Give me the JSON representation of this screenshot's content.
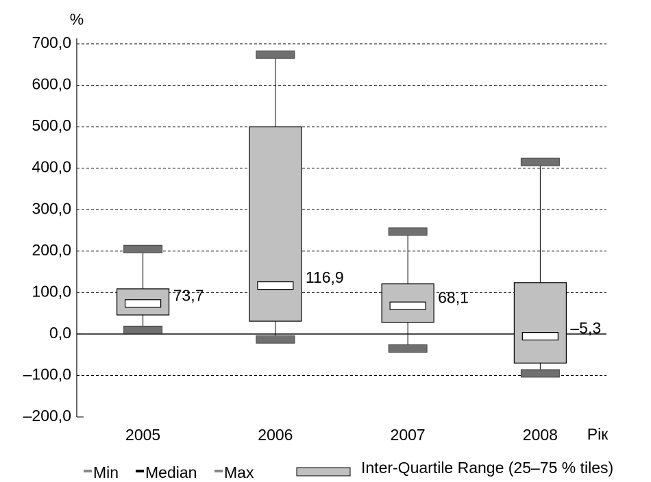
{
  "chart_data": {
    "type": "box",
    "y_label": "%",
    "x_label": "Рік",
    "categories": [
      "2005",
      "2006",
      "2007",
      "2008"
    ],
    "ylim": [
      -200,
      700
    ],
    "yticks": [
      {
        "value": -200,
        "label": "–200,0"
      },
      {
        "value": -100,
        "label": "–100,0"
      },
      {
        "value": 0,
        "label": "0,0"
      },
      {
        "value": 100,
        "label": "100,0"
      },
      {
        "value": 200,
        "label": "200,0"
      },
      {
        "value": 300,
        "label": "300,0"
      },
      {
        "value": 400,
        "label": "400,0"
      },
      {
        "value": 500,
        "label": "500,0"
      },
      {
        "value": 600,
        "label": "600,0"
      },
      {
        "value": 700,
        "label": "700,0"
      }
    ],
    "grid": true,
    "min": {
      "name": "Min",
      "color": "#707070",
      "values": [
        10,
        -13,
        -35,
        -95
      ]
    },
    "median": {
      "name": "Median",
      "color": "#000000",
      "values": [
        73.7,
        116.9,
        68.1,
        -5.3
      ],
      "value_labels": [
        "73,7",
        "116,9",
        "68,1",
        "–5,3"
      ]
    },
    "max": {
      "name": "Max",
      "color": "#707070",
      "values": [
        205,
        674,
        247,
        415
      ]
    },
    "iqr": {
      "name": "Inter-Quartile Range (25–75 % tiles)",
      "color": "#c0c0c0",
      "q1": [
        46,
        31,
        28,
        -70
      ],
      "q3": [
        109,
        500,
        121,
        124
      ]
    }
  }
}
